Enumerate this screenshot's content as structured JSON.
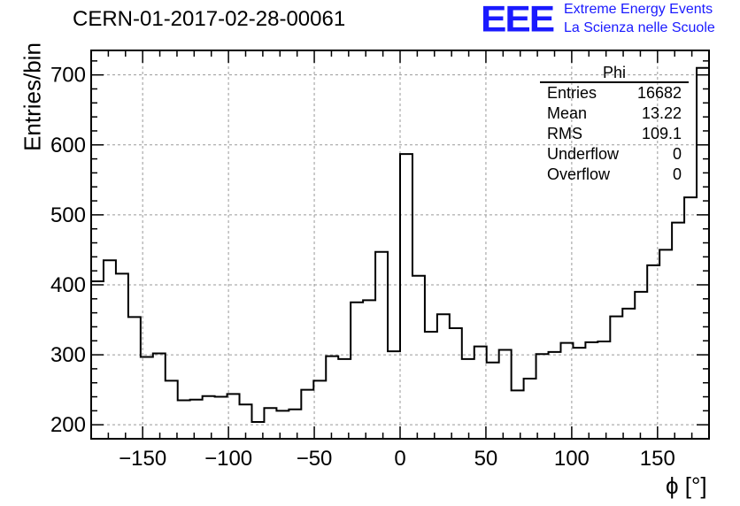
{
  "title": "CERN-01-2017-02-28-00061",
  "logo": {
    "mark": "EEE",
    "line1": "Extreme Energy Events",
    "line2": "La Scienza nelle Scuole",
    "color": "#1a1aff"
  },
  "stats": {
    "name": "Phi",
    "rows": [
      {
        "label": "Entries",
        "value": "16682"
      },
      {
        "label": "Mean",
        "value": "13.22"
      },
      {
        "label": "RMS",
        "value": "109.1"
      },
      {
        "label": "Underflow",
        "value": "0"
      },
      {
        "label": "Overflow",
        "value": "0"
      }
    ]
  },
  "chart_data": {
    "type": "histogram",
    "title": "CERN-01-2017-02-28-00061",
    "xlabel": "ϕ [°]",
    "ylabel": "Entries/bin",
    "xlim": [
      -180,
      180
    ],
    "ylim": [
      180,
      735
    ],
    "bin_width": 7.2,
    "xticks": [
      -150,
      -100,
      -50,
      0,
      50,
      100,
      150
    ],
    "yticks": [
      200,
      300,
      400,
      500,
      600,
      700
    ],
    "grid": true,
    "values": [
      405,
      435,
      416,
      354,
      297,
      302,
      263,
      235,
      236,
      241,
      240,
      244,
      229,
      204,
      224,
      220,
      222,
      250,
      263,
      298,
      294,
      375,
      378,
      447,
      305,
      587,
      413,
      333,
      358,
      338,
      294,
      312,
      289,
      307,
      249,
      266,
      301,
      304,
      317,
      310,
      318,
      319,
      355,
      366,
      390,
      428,
      450,
      489,
      525,
      710
    ]
  }
}
